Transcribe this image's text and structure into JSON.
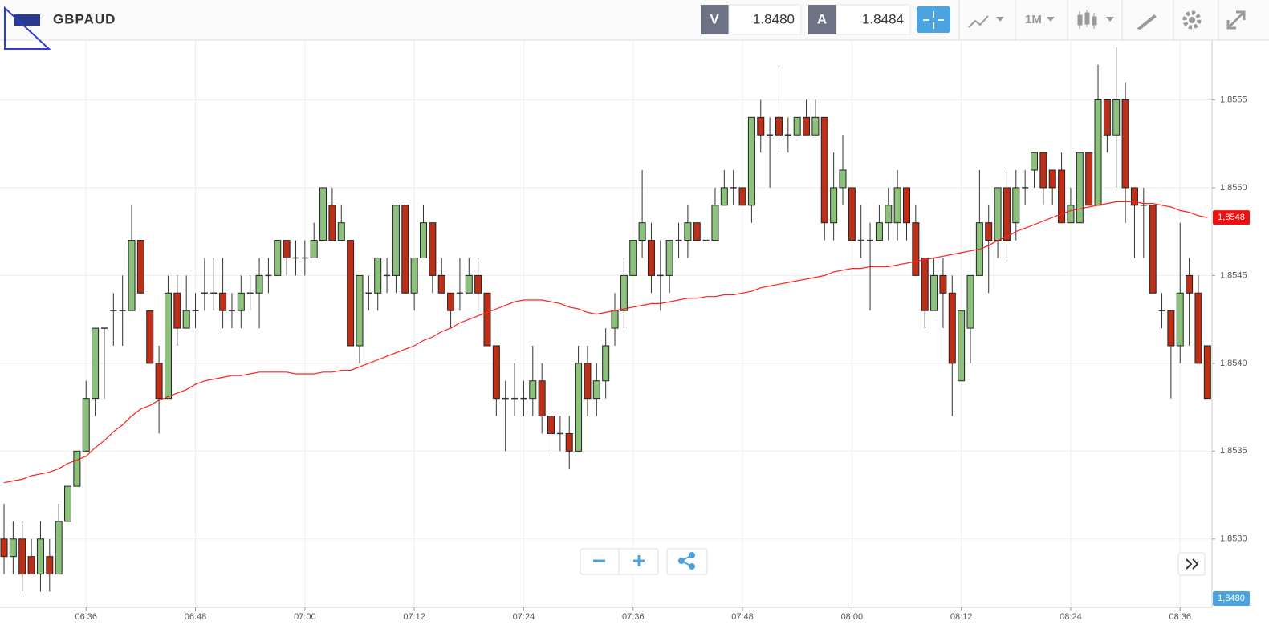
{
  "toolbar": {
    "symbol": "GBPAUD",
    "sell_label": "V",
    "sell_price": "1.8480",
    "buy_label": "A",
    "buy_price": "1.8484",
    "timeframe": "1M"
  },
  "chart_data": {
    "type": "candlestick",
    "categories": [
      null,
      null,
      null,
      null,
      null,
      null,
      null,
      null,
      null,
      "06:36",
      null,
      null,
      null,
      null,
      null,
      null,
      null,
      null,
      null,
      null,
      null,
      "06:48",
      null,
      null,
      null,
      null,
      null,
      null,
      null,
      null,
      null,
      null,
      null,
      "07:00",
      null,
      null,
      null,
      null,
      null,
      null,
      null,
      null,
      null,
      null,
      null,
      "07:12",
      null,
      null,
      null,
      null,
      null,
      null,
      null,
      null,
      null,
      null,
      null,
      "07:24",
      null,
      null,
      null,
      null,
      null,
      null,
      null,
      null,
      null,
      null,
      null,
      "07:36",
      null,
      null,
      null,
      null,
      null,
      null,
      null,
      null,
      null,
      null,
      null,
      "07:48",
      null,
      null,
      null,
      null,
      null,
      null,
      null,
      null,
      null,
      null,
      null,
      "08:00",
      null,
      null,
      null,
      null,
      null,
      null,
      null,
      null,
      null,
      null,
      null,
      "08:12",
      null,
      null,
      null,
      null,
      null,
      null,
      null,
      null,
      null,
      null,
      null,
      "08:24",
      null,
      null,
      null,
      null,
      null,
      null,
      null,
      null,
      null,
      null,
      null,
      "08:36",
      null,
      null,
      null
    ],
    "open": [
      1.853,
      1.8529,
      1.853,
      1.8529,
      1.8528,
      1.8529,
      1.8528,
      1.8531,
      1.8533,
      1.8535,
      1.8538,
      1.8542,
      1.8543,
      1.8543,
      1.8543,
      1.8547,
      1.8543,
      1.854,
      1.8538,
      1.8544,
      1.8542,
      1.8543,
      1.8544,
      1.8544,
      1.8544,
      1.8543,
      1.8543,
      1.8544,
      1.8544,
      1.8545,
      1.8545,
      1.8547,
      1.8546,
      1.8546,
      1.8546,
      1.8547,
      1.8549,
      1.8547,
      1.8547,
      1.8541,
      1.8544,
      1.8544,
      1.8545,
      1.8545,
      1.8549,
      1.8544,
      1.8546,
      1.8548,
      1.8545,
      1.8544,
      1.8544,
      1.8544,
      1.8545,
      1.8544,
      1.8541,
      1.8538,
      1.8538,
      1.8538,
      1.8538,
      1.8539,
      1.8537,
      1.8536,
      1.8536,
      1.8535,
      1.854,
      1.8538,
      1.8539,
      1.8542,
      1.8543,
      1.8545,
      1.8547,
      1.8547,
      1.8545,
      1.8545,
      1.8547,
      1.8547,
      1.8548,
      1.8547,
      1.8547,
      1.8549,
      1.855,
      1.855,
      1.8549,
      1.8554,
      1.8553,
      1.8554,
      1.8553,
      1.8553,
      1.8554,
      1.8553,
      1.8554,
      1.8548,
      1.855,
      1.855,
      1.8547,
      1.8547,
      1.8547,
      1.8548,
      1.8548,
      1.855,
      1.8548,
      1.8546,
      1.8543,
      1.8545,
      1.8544,
      1.8539,
      1.8542,
      1.8545,
      1.8548,
      1.8547,
      1.855,
      1.8548,
      1.855,
      1.8551,
      1.8552,
      1.8551,
      1.8551,
      1.8548,
      1.8548,
      1.8552,
      1.8549,
      1.8555,
      1.8553,
      1.8555,
      1.855,
      1.8549,
      1.8549,
      1.8543,
      1.8543,
      1.8541,
      1.8545,
      1.8544,
      1.8541
    ],
    "high": [
      1.8532,
      1.8531,
      1.8531,
      1.853,
      1.8531,
      1.853,
      1.8532,
      1.8533,
      1.8535,
      1.8539,
      1.8542,
      1.8542,
      1.8544,
      1.8545,
      1.8549,
      1.8547,
      1.8543,
      1.8541,
      1.8545,
      1.8545,
      1.8545,
      1.8544,
      1.8546,
      1.8546,
      1.8546,
      1.8544,
      1.8545,
      1.8545,
      1.8546,
      1.8546,
      1.8547,
      1.8547,
      1.8547,
      1.8547,
      1.8548,
      1.855,
      1.855,
      1.8549,
      1.8547,
      1.8545,
      1.8545,
      1.8546,
      1.8546,
      1.8549,
      1.8549,
      1.8546,
      1.8549,
      1.8548,
      1.8546,
      1.8544,
      1.8546,
      1.8546,
      1.8546,
      1.8544,
      1.8541,
      1.8539,
      1.854,
      1.8539,
      1.8541,
      1.854,
      1.8537,
      1.8537,
      1.8537,
      1.8541,
      1.8541,
      1.854,
      1.8542,
      1.8544,
      1.8546,
      1.8547,
      1.8551,
      1.8548,
      1.8547,
      1.8547,
      1.8548,
      1.8549,
      1.8548,
      1.8547,
      1.855,
      1.8551,
      1.8551,
      1.855,
      1.8554,
      1.8555,
      1.8554,
      1.8557,
      1.8554,
      1.8554,
      1.8555,
      1.8555,
      1.8554,
      1.8552,
      1.8553,
      1.855,
      1.8549,
      1.8548,
      1.8549,
      1.855,
      1.8551,
      1.855,
      1.8549,
      1.8546,
      1.8546,
      1.8546,
      1.8545,
      1.8543,
      1.8545,
      1.8551,
      1.8549,
      1.855,
      1.8551,
      1.8551,
      1.8551,
      1.8552,
      1.8552,
      1.8551,
      1.8552,
      1.855,
      1.8552,
      1.8552,
      1.8557,
      1.8555,
      1.8558,
      1.8556,
      1.855,
      1.855,
      1.8549,
      1.8544,
      1.8543,
      1.8548,
      1.8546,
      1.8545,
      1.8541
    ],
    "low": [
      1.8528,
      1.8528,
      1.8527,
      1.8528,
      1.8527,
      1.8527,
      1.8528,
      1.8531,
      1.8533,
      1.8535,
      1.8537,
      1.8538,
      1.8541,
      1.8541,
      1.8543,
      1.8544,
      1.854,
      1.8536,
      1.8538,
      1.8541,
      1.8542,
      1.8542,
      1.8543,
      1.8543,
      1.8542,
      1.8542,
      1.8542,
      1.8543,
      1.8542,
      1.8544,
      1.8545,
      1.8545,
      1.8545,
      1.8545,
      1.8546,
      1.8547,
      1.8547,
      1.8547,
      1.8541,
      1.854,
      1.8543,
      1.8543,
      1.8544,
      1.8544,
      1.8544,
      1.8543,
      1.8546,
      1.8544,
      1.8544,
      1.8542,
      1.8543,
      1.8544,
      1.8543,
      1.8541,
      1.8537,
      1.8535,
      1.8537,
      1.8537,
      1.8537,
      1.8536,
      1.8535,
      1.8535,
      1.8534,
      1.8535,
      1.8537,
      1.8537,
      1.8538,
      1.8541,
      1.8542,
      1.8545,
      1.8546,
      1.8544,
      1.8543,
      1.8544,
      1.8546,
      1.8546,
      1.8547,
      1.8547,
      1.8547,
      1.8549,
      1.8549,
      1.8549,
      1.8548,
      1.8552,
      1.855,
      1.8552,
      1.8552,
      1.8553,
      1.8553,
      1.8553,
      1.8547,
      1.8547,
      1.8549,
      1.8547,
      1.8546,
      1.8543,
      1.8547,
      1.8547,
      1.8547,
      1.8547,
      1.8545,
      1.8542,
      1.8543,
      1.8542,
      1.8537,
      1.8539,
      1.854,
      1.8545,
      1.8544,
      1.8546,
      1.8546,
      1.8547,
      1.8549,
      1.855,
      1.8549,
      1.8549,
      1.8548,
      1.8548,
      1.8548,
      1.8549,
      1.8549,
      1.8552,
      1.855,
      1.8548,
      1.8546,
      1.8546,
      1.8544,
      1.8542,
      1.8538,
      1.854,
      1.8541,
      1.854,
      1.8538
    ],
    "close": [
      1.8529,
      1.853,
      1.8528,
      1.8528,
      1.853,
      1.8528,
      1.8531,
      1.8533,
      1.8535,
      1.8538,
      1.8542,
      1.8542,
      1.8543,
      1.8543,
      1.8547,
      1.8544,
      1.854,
      1.8538,
      1.8544,
      1.8542,
      1.8543,
      1.8543,
      1.8544,
      1.8544,
      1.8543,
      1.8543,
      1.8544,
      1.8544,
      1.8545,
      1.8545,
      1.8547,
      1.8546,
      1.8546,
      1.8546,
      1.8547,
      1.855,
      1.8547,
      1.8548,
      1.8541,
      1.8545,
      1.8544,
      1.8546,
      1.8545,
      1.8549,
      1.8544,
      1.8546,
      1.8548,
      1.8545,
      1.8544,
      1.8543,
      1.8544,
      1.8545,
      1.8544,
      1.8541,
      1.8538,
      1.8538,
      1.8538,
      1.8538,
      1.8539,
      1.8537,
      1.8536,
      1.8536,
      1.8535,
      1.854,
      1.8538,
      1.8539,
      1.8541,
      1.8543,
      1.8545,
      1.8547,
      1.8548,
      1.8545,
      1.8545,
      1.8547,
      1.8547,
      1.8548,
      1.8547,
      1.8547,
      1.8549,
      1.855,
      1.855,
      1.8549,
      1.8554,
      1.8553,
      1.8553,
      1.8553,
      1.8553,
      1.8554,
      1.8553,
      1.8554,
      1.8548,
      1.855,
      1.8551,
      1.8547,
      1.8547,
      1.8547,
      1.8548,
      1.8549,
      1.855,
      1.8548,
      1.8545,
      1.8543,
      1.8545,
      1.8544,
      1.854,
      1.8543,
      1.8545,
      1.8548,
      1.8547,
      1.855,
      1.8547,
      1.855,
      1.855,
      1.8552,
      1.855,
      1.855,
      1.8548,
      1.8549,
      1.8552,
      1.8549,
      1.8555,
      1.8553,
      1.8555,
      1.855,
      1.8549,
      1.8549,
      1.8544,
      1.8543,
      1.8541,
      1.8544,
      1.8544,
      1.854,
      1.8538
    ],
    "up_color": "#8cc17c",
    "down_color": "#bd2f17",
    "doji_color": "#333333",
    "line": {
      "color": "#ff2020",
      "values": [
        1.85332,
        1.85333,
        1.85334,
        1.85336,
        1.85337,
        1.85338,
        1.8534,
        1.85343,
        1.85345,
        1.85347,
        1.85352,
        1.85356,
        1.85361,
        1.85365,
        1.8537,
        1.85374,
        1.85376,
        1.85379,
        1.85381,
        1.85383,
        1.85385,
        1.85388,
        1.8539,
        1.85391,
        1.85392,
        1.85393,
        1.85393,
        1.85394,
        1.85395,
        1.85395,
        1.85395,
        1.85395,
        1.85394,
        1.85394,
        1.85394,
        1.85395,
        1.85395,
        1.85396,
        1.85396,
        1.85398,
        1.854,
        1.85402,
        1.85404,
        1.85406,
        1.85408,
        1.8541,
        1.85413,
        1.85415,
        1.85418,
        1.8542,
        1.85423,
        1.85425,
        1.85427,
        1.85429,
        1.85431,
        1.85433,
        1.85435,
        1.85436,
        1.85436,
        1.85436,
        1.85435,
        1.85434,
        1.85432,
        1.85431,
        1.85429,
        1.85428,
        1.85429,
        1.8543,
        1.85431,
        1.85432,
        1.85433,
        1.85434,
        1.85434,
        1.85435,
        1.85436,
        1.85437,
        1.85437,
        1.85438,
        1.85438,
        1.85439,
        1.85439,
        1.8544,
        1.85441,
        1.85443,
        1.85444,
        1.85445,
        1.85446,
        1.85447,
        1.85448,
        1.85449,
        1.8545,
        1.85452,
        1.85453,
        1.85454,
        1.85454,
        1.85455,
        1.85455,
        1.85455,
        1.85456,
        1.85457,
        1.85458,
        1.85459,
        1.8546,
        1.85461,
        1.85462,
        1.85463,
        1.85464,
        1.85465,
        1.85467,
        1.8547,
        1.85472,
        1.85475,
        1.85477,
        1.85479,
        1.85481,
        1.85483,
        1.85485,
        1.85487,
        1.85488,
        1.85489,
        1.8549,
        1.85491,
        1.85492,
        1.85492,
        1.85492,
        1.85491,
        1.85491,
        1.8549,
        1.85489,
        1.85487,
        1.85486,
        1.85484,
        1.85483
      ]
    },
    "ylim": [
      1.85262,
      1.85584
    ],
    "yticks": [
      {
        "value": 1.853,
        "label": "1,8530"
      },
      {
        "value": 1.8535,
        "label": "1,8535"
      },
      {
        "value": 1.854,
        "label": "1,8540"
      },
      {
        "value": 1.8545,
        "label": "1,8545"
      },
      {
        "value": 1.855,
        "label": "1,8550"
      },
      {
        "value": 1.8555,
        "label": "1,8555"
      }
    ],
    "grid": true,
    "price_labels": [
      {
        "label": "1,8548",
        "color": "#ee1111"
      },
      {
        "label": "1,8480",
        "color": "#4aa3df"
      }
    ]
  }
}
